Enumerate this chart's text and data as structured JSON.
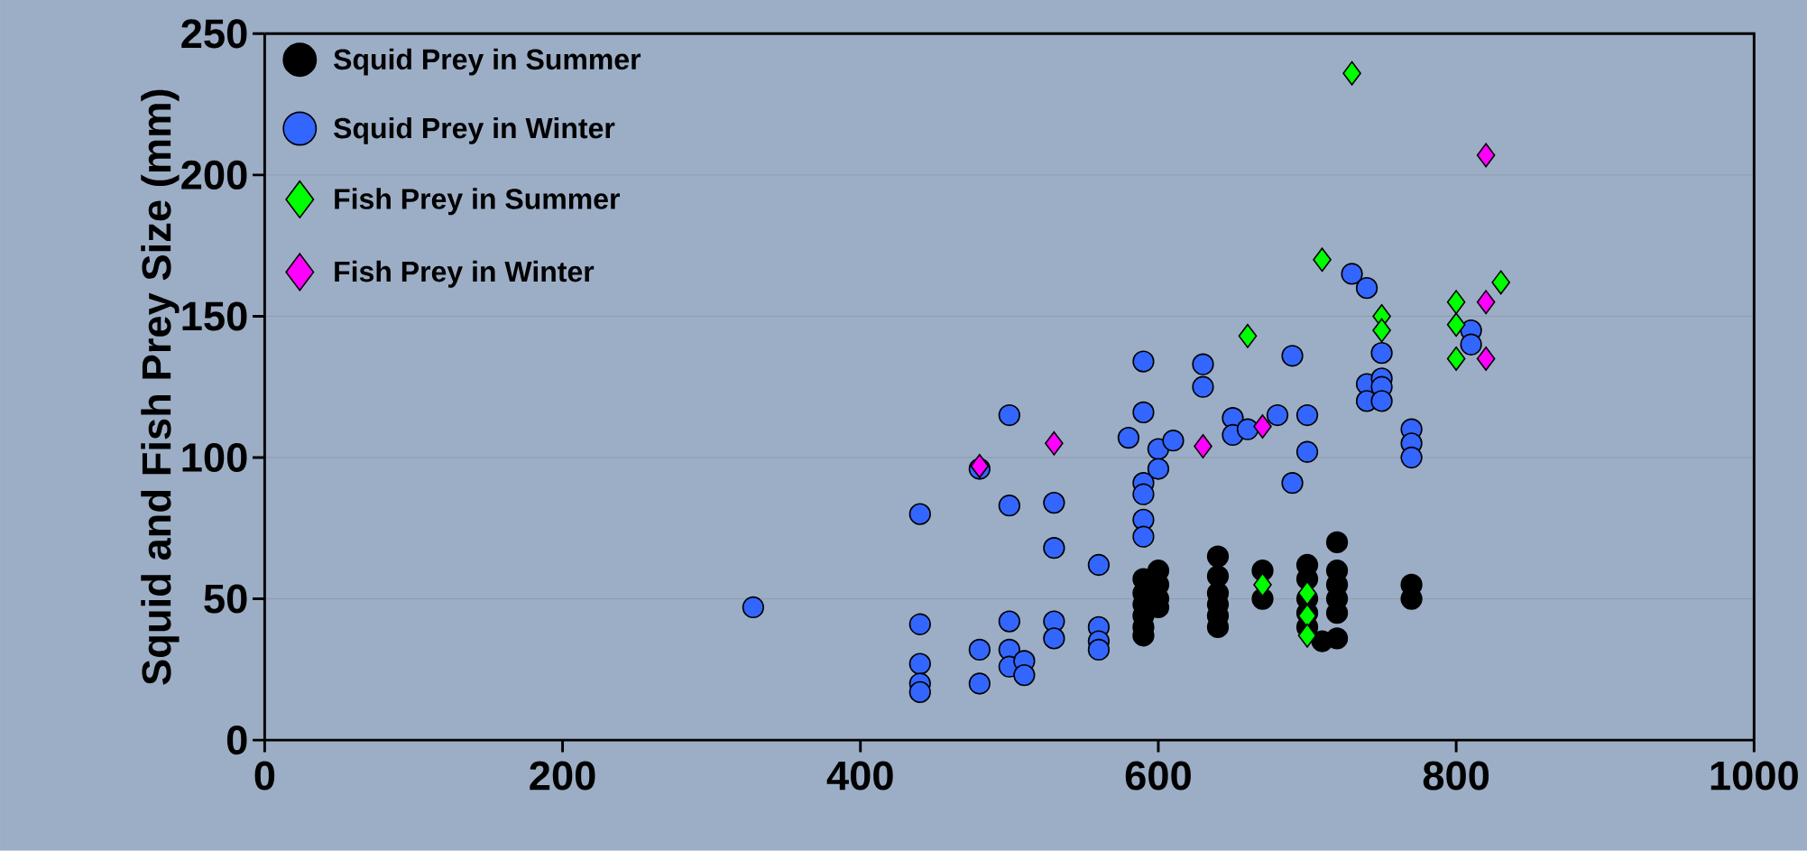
{
  "chart_data": {
    "type": "scatter",
    "ylabel": "Squid and Fish Prey Size (mm)",
    "xlim": [
      0,
      1000
    ],
    "ylim": [
      0,
      250
    ],
    "xticks": [
      0,
      200,
      400,
      600,
      800,
      1000
    ],
    "yticks": [
      0,
      50,
      100,
      150,
      200,
      250
    ],
    "grid": "y",
    "legend": "top left",
    "series": [
      {
        "name": "Squid Prey in Summer",
        "color": "#000000",
        "marker": "circle",
        "x": [
          590,
          590,
          590,
          590,
          590,
          590,
          600,
          600,
          600,
          600,
          640,
          640,
          640,
          640,
          640,
          640,
          670,
          670,
          700,
          700,
          700,
          700,
          700,
          720,
          720,
          720,
          720,
          720,
          720,
          710,
          770,
          770
        ],
        "values": [
          57,
          52,
          48,
          44,
          40,
          37,
          60,
          55,
          50,
          47,
          65,
          58,
          52,
          48,
          44,
          40,
          60,
          50,
          62,
          57,
          50,
          45,
          40,
          70,
          60,
          55,
          50,
          45,
          36,
          35,
          55,
          50
        ]
      },
      {
        "name": "Squid Prey in Winter",
        "color": "#3366ff",
        "marker": "circle",
        "x": [
          328,
          440,
          440,
          440,
          440,
          440,
          480,
          480,
          480,
          500,
          500,
          500,
          500,
          500,
          510,
          510,
          530,
          530,
          530,
          530,
          560,
          560,
          560,
          560,
          580,
          590,
          590,
          590,
          590,
          590,
          590,
          600,
          600,
          610,
          630,
          630,
          650,
          650,
          660,
          680,
          690,
          690,
          700,
          700,
          730,
          740,
          740,
          740,
          750,
          750,
          750,
          750,
          770,
          770,
          770,
          810,
          810
        ],
        "values": [
          47,
          80,
          41,
          27,
          20,
          17,
          96,
          32,
          20,
          115,
          83,
          42,
          32,
          26,
          28,
          23,
          84,
          68,
          42,
          36,
          62,
          40,
          35,
          32,
          107,
          134,
          116,
          91,
          87,
          78,
          72,
          103,
          96,
          106,
          133,
          125,
          114,
          108,
          110,
          115,
          136,
          91,
          115,
          102,
          165,
          160,
          126,
          120,
          137,
          128,
          125,
          120,
          110,
          105,
          100,
          145,
          140
        ]
      },
      {
        "name": "Fish Prey in Summer",
        "color": "#00ff00",
        "marker": "diamond",
        "x": [
          730,
          710,
          660,
          750,
          750,
          800,
          800,
          800,
          830,
          670,
          700,
          700,
          700
        ],
        "values": [
          236,
          170,
          143,
          150,
          145,
          155,
          147,
          135,
          162,
          55,
          52,
          44,
          37
        ]
      },
      {
        "name": "Fish Prey in Winter",
        "color": "#ff00ff",
        "marker": "diamond",
        "x": [
          480,
          530,
          630,
          670,
          820,
          820,
          820
        ],
        "values": [
          97,
          105,
          104,
          111,
          207,
          155,
          135
        ]
      }
    ]
  }
}
